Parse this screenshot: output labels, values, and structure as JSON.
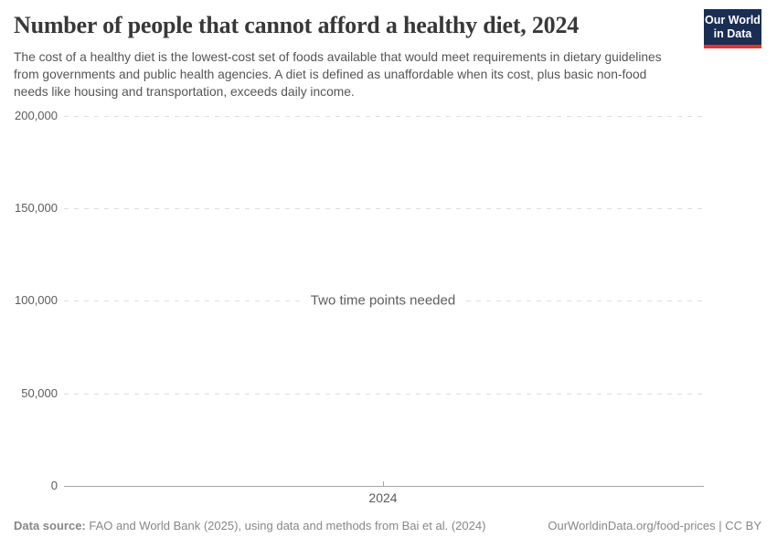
{
  "header": {
    "title": "Number of people that cannot afford a healthy diet, 2024",
    "subtitle": "The cost of a healthy diet is the lowest-cost set of foods available that would meet requirements in dietary guidelines from governments and public health agencies. A diet is defined as unaffordable when its cost, plus basic non-food needs like housing and transportation, exceeds daily income.",
    "logo": {
      "line1": "Our World",
      "line2": "in Data",
      "background_color": "#1a2e54",
      "bar_color": "#e0362c"
    }
  },
  "chart_data": {
    "type": "line",
    "title": "Number of people that cannot afford a healthy diet, 2024",
    "series": [],
    "empty_message": "Two time points needed",
    "xlabel": "",
    "ylabel": "",
    "ylim": [
      0,
      200000
    ],
    "yticks": [
      200000,
      150000,
      100000,
      50000,
      0
    ],
    "ytick_labels": [
      "200,000",
      "150,000",
      "100,000",
      "50,000",
      "0"
    ],
    "xtick_labels": [
      "2024"
    ],
    "grid": true,
    "grid_style": "dashed",
    "legend": "none",
    "axis_color": "#a5a5a5",
    "gridline_color": "#dedede"
  },
  "footer": {
    "source_label": "Data source:",
    "source_text": " FAO and World Bank (2025), using data and methods from Bai et al. (2024)",
    "rights": "OurWorldinData.org/food-prices | CC BY"
  }
}
